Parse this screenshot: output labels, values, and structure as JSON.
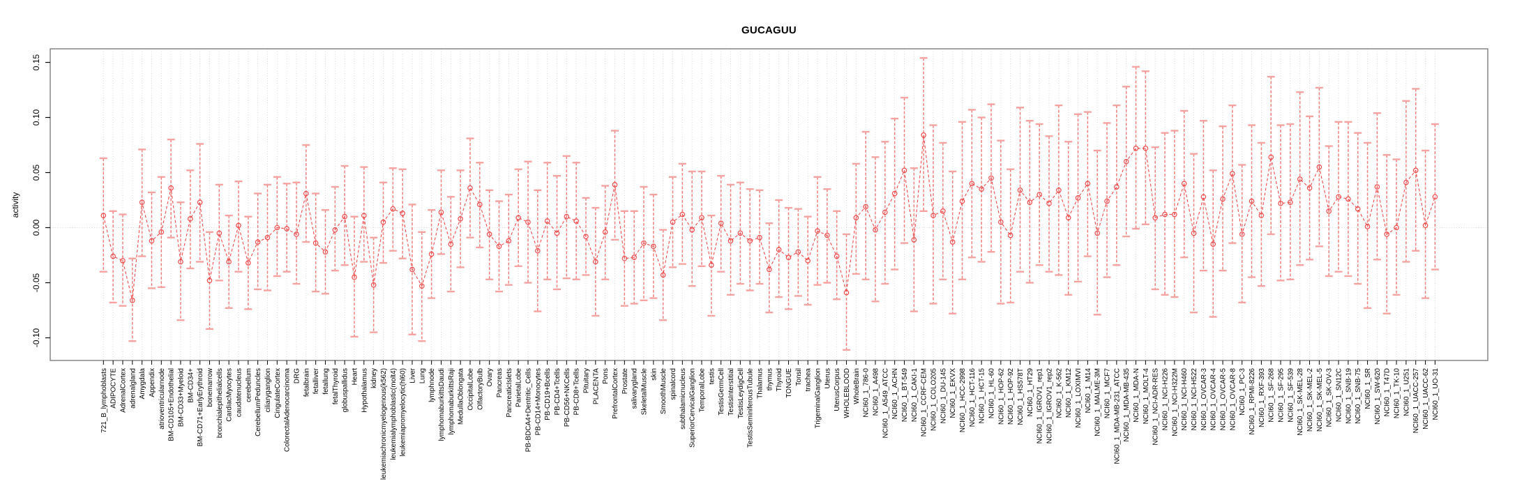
{
  "chart_data": {
    "type": "scatter",
    "title": "GUCAGUU",
    "ylabel": "activity",
    "xlabel": "",
    "ylim": [
      -0.121,
      0.162
    ],
    "yticks": [
      -0.1,
      -0.05,
      0.0,
      0.05,
      0.1,
      0.15
    ],
    "grid": "vertical dotted line per category, horizontal dotted line at 0",
    "legend": "none",
    "marker": "open-circle",
    "categories": [
      "721_B_lymphoblasts",
      "ADIPOCYTE",
      "AdrenalCortex",
      "adrenalgland",
      "Amygdala",
      "Appendix",
      "atrioventricularnode",
      "BM-CD105+Endothelial",
      "BM-CD33+Myeloid",
      "BM-CD34+",
      "BM-CD71+EarlyErythroid",
      "bonemarrow",
      "bronchialepithelialcells",
      "CardiacMyocytes",
      "caudatenucleus",
      "cerebellum",
      "CerebellumPeduncles",
      "ciliaryganglion",
      "CingulateCortex",
      "ColorectalAdenocarcinoma",
      "DRG",
      "fetalbrain",
      "fetalliver",
      "fetallung",
      "fetalThyroid",
      "globuspallidus",
      "Heart",
      "Hypothalamus",
      "kidney",
      "leukemiachronicmyelogenous(k562)",
      "leukemialymphoblastic(molt4)",
      "leukemiapromyelocytic(hl60)",
      "Liver",
      "Lung",
      "lymphnode",
      "lymphomaburkittsDaudi",
      "lymphomaburkittsRaji",
      "MedullaOblongata",
      "OccipitalLobe",
      "OlfactoryBulb",
      "Ovary",
      "Pancreas",
      "PancreaticIslets",
      "ParietalLobe",
      "PB-BDCA4+Dentritic_Cells",
      "PB-CD14+Monocytes",
      "PB-CD19+Bcells",
      "PB-CD4+Tcells",
      "PB-CD56+NKCells",
      "PB-CD8+Tcells",
      "Pituitary",
      "PLACENTA",
      "Pons",
      "PrefrontalCortex",
      "Prostate",
      "salivarygland",
      "SkeletalMuscle",
      "skin",
      "SmoothMuscle",
      "spinalcord",
      "subthalamicnucleus",
      "SuperiorCervicalGanglion",
      "TemporalLobe",
      "testis",
      "TestisGermCell",
      "TestisInterstitial",
      "TestisLeydigCell",
      "TestisSeminiferousTubule",
      "Thalamus",
      "thymus",
      "Thyroid",
      "TONGUE",
      "Tonsil",
      "trachea",
      "TrigeminalGanglion",
      "Uterus",
      "UterusCorpus",
      "WHOLEBLOOD",
      "WholeBrain",
      "NCI60_1_786-0",
      "NCI60_1_A498",
      "NCI60_1_A549_ATCC",
      "NCI60_1_ACHN",
      "NCI60_1_BT-549",
      "NCI60_1_CAKI-1",
      "NCI60_1_CCRF-CEM",
      "NCI60_1_COLO205",
      "NCI60_1_DU-145",
      "NCI60_1_EKVX",
      "NCI60_1_HCC-2998",
      "NCI60_1_HCT-116",
      "NCI60_1_HCT-15",
      "NCI60_1_HL-60",
      "NCI60_1_HOP-62",
      "NCI60_1_HOP-92",
      "NCI60_1_HS578T",
      "NCI60_1_HT29",
      "NCI60_1_IGROV1_rep1",
      "NCI60_1_IGROV1_rep2",
      "NCI60_1_K-562",
      "NCI60_1_KM12",
      "NCI60_1_LOXIMVI",
      "NCI60_1_M14",
      "NCI60_1_MALME-3M",
      "NCI60_1_MCF7",
      "NCI60_1_MDA-MB-231_ATCC",
      "NCI60_1_MDA-MB-435",
      "NCI60_1_MDA-N",
      "NCI60_1_MOLT-4",
      "NCI60_1_NCI-ADR-RES",
      "NCI60_1_NCI-H226",
      "NCI60_1_NCI-H322M",
      "NCI60_1_NCI-H460",
      "NCI60_1_NCI-H522",
      "NCI60_1_OVCAR-3",
      "NCI60_1_OVCAR-4",
      "NCI60_1_OVCAR-5",
      "NCI60_1_OVCAR-8",
      "NCI60_1_PC-3",
      "NCI60_1_RPMI-8226",
      "NCI60_1_RXF-393",
      "NCI60_1_SF-268",
      "NCI60_1_SF-295",
      "NCI60_1_SF-539",
      "NCI60_1_SK-MEL-28",
      "NCI60_1_SK-MEL-2",
      "NCI60_1_SK-MEL-5",
      "NCI60_1_SK-OV-3",
      "NCI60_1_SN12C",
      "NCI60_1_SNB-19",
      "NCI60_1_SNB-75",
      "NCI60_1_SR",
      "NCI60_1_SW-620",
      "NCI60_1_T47D",
      "NCI60_1_TK-10",
      "NCI60_1_U251",
      "NCI60_1_UACC-257",
      "NCI60_1_UACC-62",
      "NCI60_1_UO-31"
    ],
    "series": [
      {
        "name": "activity",
        "values": [
          0.011,
          -0.026,
          -0.03,
          -0.066,
          0.023,
          -0.012,
          -0.004,
          0.036,
          -0.031,
          0.008,
          0.023,
          -0.048,
          -0.005,
          -0.031,
          0.002,
          -0.032,
          -0.013,
          -0.009,
          0.0,
          -0.001,
          -0.006,
          0.031,
          -0.014,
          -0.022,
          -0.002,
          0.01,
          -0.045,
          0.011,
          -0.052,
          0.005,
          0.017,
          0.013,
          -0.038,
          -0.053,
          -0.024,
          0.014,
          -0.015,
          0.008,
          0.036,
          0.021,
          -0.006,
          -0.017,
          -0.012,
          0.009,
          0.005,
          -0.021,
          0.006,
          -0.005,
          0.01,
          0.006,
          -0.008,
          -0.031,
          -0.004,
          0.039,
          -0.028,
          -0.027,
          -0.014,
          -0.017,
          -0.043,
          0.005,
          0.012,
          -0.002,
          0.009,
          -0.034,
          0.004,
          -0.012,
          -0.005,
          -0.012,
          -0.009,
          -0.038,
          -0.02,
          -0.027,
          -0.022,
          -0.03,
          -0.003,
          -0.007,
          -0.026,
          -0.059,
          0.009,
          0.019,
          -0.002,
          0.014,
          0.031,
          0.052,
          -0.011,
          0.084,
          0.011,
          0.015,
          -0.013,
          0.024,
          0.04,
          0.035,
          0.045,
          0.005,
          -0.007,
          0.034,
          0.023,
          0.03,
          0.022,
          0.034,
          0.009,
          0.027,
          0.04,
          -0.005,
          0.024,
          0.037,
          0.06,
          0.072,
          0.072,
          0.009,
          0.012,
          0.012,
          0.04,
          -0.005,
          0.028,
          -0.015,
          0.026,
          0.049,
          -0.006,
          0.024,
          0.011,
          0.064,
          0.022,
          0.023,
          0.044,
          0.036,
          0.055,
          0.015,
          0.028,
          0.026,
          0.017,
          0.001,
          0.037,
          -0.006,
          0.0,
          0.041,
          0.052,
          0.002,
          0.028
        ],
        "upper": [
          0.063,
          0.015,
          0.012,
          -0.028,
          0.071,
          0.032,
          0.046,
          0.08,
          0.023,
          0.052,
          0.076,
          -0.004,
          0.039,
          0.011,
          0.042,
          0.01,
          0.031,
          0.039,
          0.046,
          0.04,
          0.041,
          0.075,
          0.031,
          0.016,
          0.037,
          0.056,
          0.01,
          0.055,
          -0.009,
          0.041,
          0.054,
          0.053,
          0.021,
          -0.004,
          0.016,
          0.052,
          0.028,
          0.052,
          0.081,
          0.059,
          0.034,
          0.024,
          0.03,
          0.053,
          0.06,
          0.034,
          0.059,
          0.047,
          0.065,
          0.059,
          0.027,
          0.018,
          0.038,
          0.088,
          0.015,
          0.015,
          0.037,
          0.03,
          -0.002,
          0.046,
          0.058,
          0.051,
          0.051,
          0.011,
          0.047,
          0.039,
          0.041,
          0.035,
          0.034,
          0.004,
          0.025,
          0.018,
          0.017,
          0.01,
          0.046,
          0.035,
          0.015,
          -0.006,
          0.058,
          0.087,
          0.064,
          0.078,
          0.099,
          0.118,
          0.054,
          0.154,
          0.093,
          0.077,
          0.051,
          0.096,
          0.107,
          0.1,
          0.112,
          0.079,
          0.053,
          0.109,
          0.097,
          0.094,
          0.083,
          0.111,
          0.078,
          0.103,
          0.105,
          0.07,
          0.095,
          0.111,
          0.128,
          0.146,
          0.142,
          0.073,
          0.086,
          0.088,
          0.106,
          0.067,
          0.097,
          0.052,
          0.092,
          0.111,
          0.057,
          0.093,
          0.077,
          0.137,
          0.093,
          0.094,
          0.123,
          0.101,
          0.127,
          0.074,
          0.096,
          0.096,
          0.086,
          0.077,
          0.104,
          0.066,
          0.062,
          0.115,
          0.126,
          0.07,
          0.094
        ],
        "lower": [
          -0.04,
          -0.068,
          -0.071,
          -0.103,
          -0.026,
          -0.055,
          -0.054,
          -0.009,
          -0.084,
          -0.037,
          -0.031,
          -0.092,
          -0.048,
          -0.073,
          -0.04,
          -0.074,
          -0.056,
          -0.057,
          -0.044,
          -0.04,
          -0.051,
          -0.013,
          -0.058,
          -0.06,
          -0.039,
          -0.034,
          -0.099,
          -0.031,
          -0.095,
          -0.032,
          -0.021,
          -0.028,
          -0.097,
          -0.103,
          -0.064,
          -0.024,
          -0.058,
          -0.036,
          -0.009,
          -0.018,
          -0.047,
          -0.058,
          -0.052,
          -0.035,
          -0.05,
          -0.076,
          -0.047,
          -0.056,
          -0.046,
          -0.047,
          -0.043,
          -0.08,
          -0.047,
          -0.011,
          -0.071,
          -0.069,
          -0.066,
          -0.064,
          -0.084,
          -0.036,
          -0.033,
          -0.053,
          -0.035,
          -0.08,
          -0.04,
          -0.061,
          -0.051,
          -0.057,
          -0.051,
          -0.077,
          -0.063,
          -0.074,
          -0.062,
          -0.07,
          -0.052,
          -0.05,
          -0.065,
          -0.111,
          -0.042,
          -0.047,
          -0.067,
          -0.051,
          -0.038,
          -0.014,
          -0.076,
          0.015,
          -0.069,
          -0.047,
          -0.078,
          -0.047,
          -0.027,
          -0.031,
          -0.022,
          -0.069,
          -0.068,
          -0.04,
          -0.05,
          -0.034,
          -0.04,
          -0.043,
          -0.061,
          -0.049,
          -0.026,
          -0.079,
          -0.045,
          -0.034,
          -0.008,
          -0.001,
          0.003,
          -0.056,
          -0.061,
          -0.063,
          -0.027,
          -0.077,
          -0.039,
          -0.081,
          -0.039,
          -0.014,
          -0.068,
          -0.045,
          -0.053,
          -0.006,
          -0.048,
          -0.047,
          -0.034,
          -0.029,
          -0.017,
          -0.044,
          -0.04,
          -0.044,
          -0.051,
          -0.073,
          -0.029,
          -0.078,
          -0.061,
          -0.031,
          -0.021,
          -0.064,
          -0.038
        ]
      }
    ],
    "colors": {
      "series": "#ee4b4b",
      "error_bar": "#f0807c",
      "error_cap": "#f5a3a0",
      "grid": "#d6d6d6",
      "box": "#7d7d7d",
      "tick": "#000000",
      "text": "#000000",
      "background": "#ffffff"
    }
  }
}
